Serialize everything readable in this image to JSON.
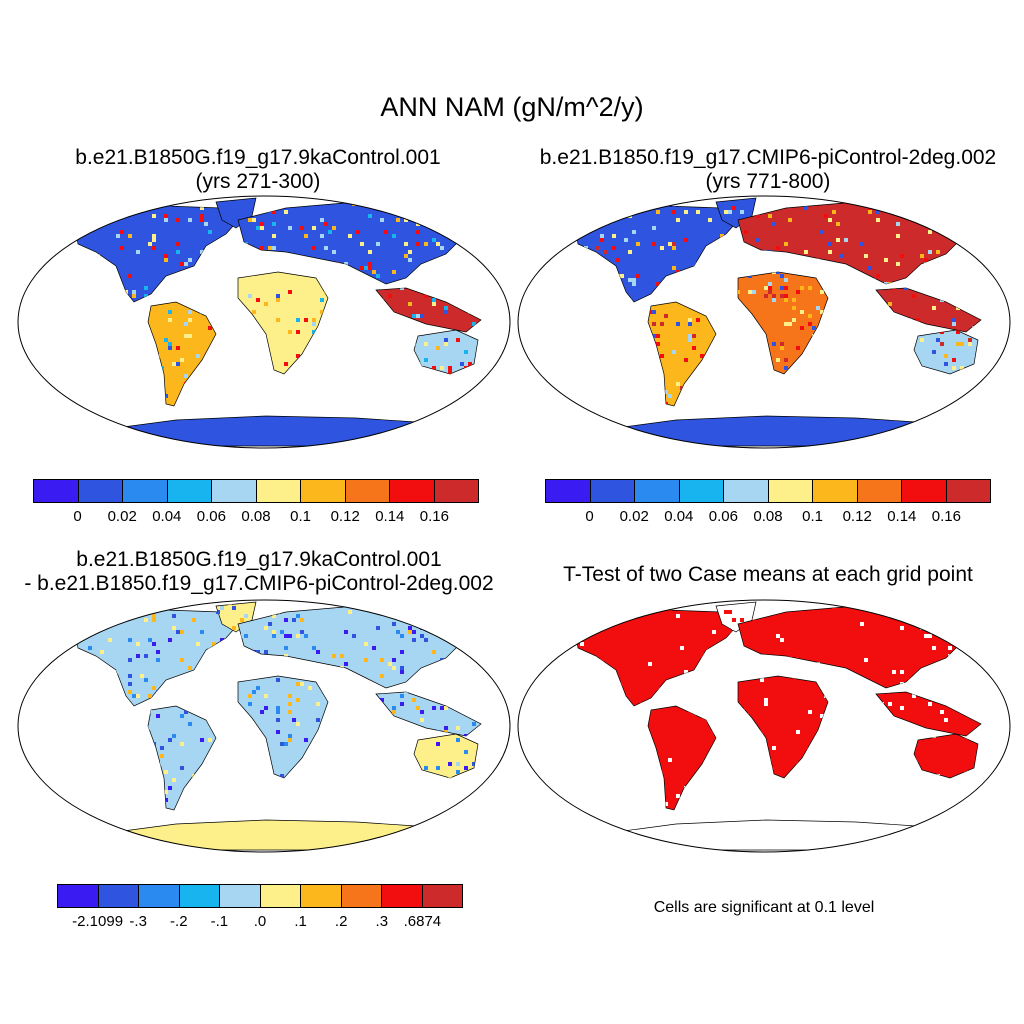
{
  "title": "ANN NAM (gN/m^2/y)",
  "panels": [
    {
      "id": "p1",
      "title_line1": "b.e21.B1850G.f19_g17.9kaControl.001",
      "title_line2": "(yrs 271-300)"
    },
    {
      "id": "p2",
      "title_line1": "b.e21.B1850.f19_g17.CMIP6-piControl-2deg.002",
      "title_line2": "(yrs 771-800)"
    },
    {
      "id": "p3",
      "title_line1": "b.e21.B1850G.f19_g17.9kaControl.001",
      "title_line2": "- b.e21.B1850.f19_g17.CMIP6-piControl-2deg.002"
    },
    {
      "id": "p4",
      "title_line1": "T-Test of two Case means at each grid point",
      "title_line2": ""
    }
  ],
  "colorbars": {
    "abs": {
      "colors": [
        "#3a1cf2",
        "#2f55e0",
        "#2a8af0",
        "#18b4f0",
        "#a6d6f2",
        "#fdf08a",
        "#fcb71c",
        "#f6741a",
        "#f20e0e",
        "#cd2b2b"
      ],
      "labels": [
        "0",
        "0.02",
        "0.04",
        "0.06",
        "0.08",
        "0.1",
        "0.12",
        "0.14",
        "0.16"
      ]
    },
    "diff": {
      "colors": [
        "#3a1cf2",
        "#2f55e0",
        "#2a8af0",
        "#18b4f0",
        "#a6d6f2",
        "#fdf08a",
        "#fcb71c",
        "#f6741a",
        "#f20e0e",
        "#cd2b2b"
      ],
      "labels": [
        "-2.1099",
        "-.3",
        "-.2",
        "-.1",
        ".0",
        ".1",
        ".2",
        ".3",
        ".6874"
      ]
    }
  },
  "significance_note": "Cells are significant at 0.1 level",
  "map_fills": {
    "p1": {
      "north_america": "#2f55e0",
      "south_america": "#fcb71c",
      "europe_asia": "#2f55e0",
      "africa": "#fdf08a",
      "australia": "#a6d6f2",
      "antarctica": "#2f55e0",
      "greenland": "#2f55e0",
      "se_asia": "#cd2b2b"
    },
    "p2": {
      "north_america": "#2f55e0",
      "south_america": "#fcb71c",
      "europe_asia": "#cd2b2b",
      "africa": "#f6741a",
      "australia": "#a6d6f2",
      "antarctica": "#2f55e0",
      "greenland": "#2f55e0",
      "se_asia": "#cd2b2b"
    },
    "p3": {
      "north_america": "#a6d6f2",
      "south_america": "#a6d6f2",
      "europe_asia": "#a6d6f2",
      "africa": "#a6d6f2",
      "australia": "#fdf08a",
      "antarctica": "#fdf08a",
      "greenland": "#fdf08a",
      "se_asia": "#a6d6f2"
    },
    "p4": {
      "north_america": "#f20e0e",
      "south_america": "#f20e0e",
      "europe_asia": "#f20e0e",
      "africa": "#f20e0e",
      "australia": "#f20e0e",
      "antarctica": "#ffffff",
      "greenland": "#ffffff",
      "se_asia": "#f20e0e"
    }
  }
}
